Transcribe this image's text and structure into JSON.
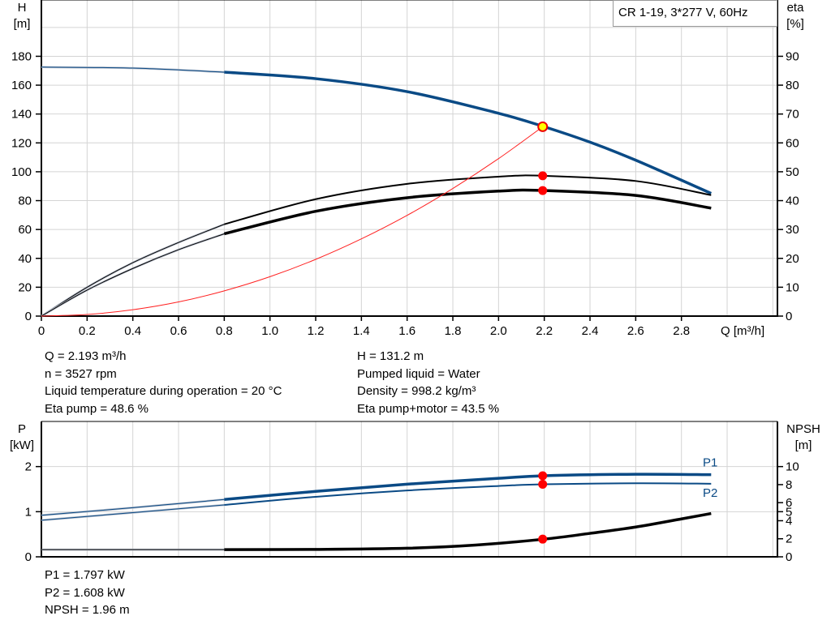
{
  "chart_data": [
    {
      "type": "line",
      "title": "CR 1-19, 3*277 V, 60Hz",
      "xlabel": "Q [m³/h]",
      "ylabel": "H\n[m]",
      "ylabel_left": [
        "H",
        "[m]"
      ],
      "ylabel_right": [
        "eta",
        "[%]"
      ],
      "xlim": [
        0,
        3.22
      ],
      "ylim": [
        0,
        219
      ],
      "y2lim": [
        0,
        109.5
      ],
      "x_ticks": [
        "0",
        "0.2",
        "0.4",
        "0.6",
        "0.8",
        "1.0",
        "1.2",
        "1.4",
        "1.6",
        "1.8",
        "2.0",
        "2.2",
        "2.4",
        "2.6",
        "2.8"
      ],
      "y_ticks": [
        "0",
        "20",
        "40",
        "60",
        "80",
        "100",
        "120",
        "140",
        "160",
        "180"
      ],
      "y2_ticks": [
        "0",
        "10",
        "20",
        "30",
        "40",
        "50",
        "60",
        "70",
        "80",
        "90"
      ],
      "grid": true,
      "series": [
        {
          "key": "H",
          "axis": "left",
          "color": "#0a4a85",
          "x": [
            0,
            0.4,
            0.8,
            1.2,
            1.6,
            2.0,
            2.2,
            2.4,
            2.6,
            2.93
          ],
          "y": [
            172.5,
            171.8,
            169,
            164.5,
            155.5,
            140.5,
            131.2,
            120.5,
            108,
            85
          ]
        },
        {
          "key": "eta_pump",
          "axis": "right",
          "color": "#000000",
          "x": [
            0,
            0.2,
            0.4,
            0.6,
            0.8,
            1.2,
            1.6,
            2.0,
            2.2,
            2.6,
            2.93
          ],
          "y": [
            0,
            10,
            18.5,
            25.5,
            31.8,
            40.5,
            45.8,
            48.3,
            48.6,
            46.8,
            41.9
          ]
        },
        {
          "key": "eta_pump_motor",
          "axis": "right",
          "color": "#000000",
          "x": [
            0,
            0.2,
            0.4,
            0.6,
            0.8,
            1.2,
            1.6,
            2.0,
            2.2,
            2.6,
            2.93
          ],
          "y": [
            0,
            9,
            16.5,
            23,
            28.5,
            36.3,
            41,
            43.3,
            43.5,
            41.8,
            37.4
          ]
        },
        {
          "key": "system_curve",
          "axis": "left",
          "color": "#ff2020",
          "x": [
            0,
            0.2,
            0.4,
            0.6,
            0.8,
            1.0,
            1.2,
            1.4,
            1.6,
            1.8,
            2.0,
            2.193
          ],
          "y": [
            0,
            1.1,
            4.4,
            9.8,
            17.5,
            27.3,
            39.3,
            53.5,
            69.8,
            88.4,
            109.1,
            131.2
          ]
        }
      ],
      "duty_points": [
        {
          "key": "H",
          "x": 2.193,
          "y": 131.2,
          "axis": "left",
          "color": "#ffff00"
        },
        {
          "key": "eta_pump",
          "x": 2.193,
          "y": 48.6,
          "axis": "right",
          "color": "#ff0000"
        },
        {
          "key": "eta_pump_motor",
          "x": 2.193,
          "y": 43.5,
          "axis": "right",
          "color": "#ff0000"
        }
      ]
    },
    {
      "type": "line",
      "ylabel_left": [
        "P",
        "[kW]"
      ],
      "ylabel_right": [
        "NPSH",
        "[m]"
      ],
      "xlim": [
        0,
        3.22
      ],
      "ylim": [
        0,
        3
      ],
      "y2lim": [
        0,
        15
      ],
      "y_ticks": [
        "0",
        "1",
        "2"
      ],
      "y2_ticks": [
        "0",
        "2",
        "4",
        "5",
        "6",
        "8",
        "10"
      ],
      "grid": true,
      "series": [
        {
          "key": "P1",
          "name": "P1",
          "axis": "left",
          "color": "#0a4a85",
          "x": [
            0,
            0.4,
            0.8,
            1.2,
            1.6,
            2.0,
            2.2,
            2.6,
            2.93
          ],
          "y": [
            0.92,
            1.09,
            1.27,
            1.45,
            1.61,
            1.74,
            1.797,
            1.83,
            1.82
          ]
        },
        {
          "key": "P2",
          "name": "P2",
          "axis": "left",
          "color": "#0a4a85",
          "x": [
            0,
            0.4,
            0.8,
            1.2,
            1.6,
            2.0,
            2.2,
            2.6,
            2.93
          ],
          "y": [
            0.81,
            0.98,
            1.15,
            1.33,
            1.47,
            1.57,
            1.608,
            1.63,
            1.62
          ]
        },
        {
          "key": "NPSH",
          "axis": "right",
          "color": "#000000",
          "x": [
            0,
            0.8,
            1.2,
            1.6,
            1.9,
            2.2,
            2.4,
            2.6,
            2.8,
            2.93
          ],
          "y": [
            0.8,
            0.8,
            0.82,
            0.95,
            1.3,
            1.96,
            2.6,
            3.3,
            4.2,
            4.8
          ]
        }
      ],
      "duty_points": [
        {
          "key": "P1",
          "x": 2.193,
          "y": 1.797,
          "axis": "left",
          "color": "#ff0000"
        },
        {
          "key": "P2",
          "x": 2.193,
          "y": 1.608,
          "axis": "left",
          "color": "#ff0000"
        },
        {
          "key": "NPSH",
          "x": 2.193,
          "y": 1.96,
          "axis": "right",
          "color": "#ff0000"
        }
      ]
    }
  ],
  "info": {
    "left": [
      "Q = 2.193 m³/h",
      "n = 3527 rpm",
      "Liquid temperature during operation = 20 °C",
      "Eta pump = 48.6 %"
    ],
    "right": [
      "H = 131.2 m",
      "Pumped liquid = Water",
      "Density = 998.2 kg/m³",
      "Eta pump+motor = 43.5 %"
    ],
    "bottom": [
      "P1 = 1.797 kW",
      "P2 = 1.608 kW",
      "NPSH = 1.96 m"
    ]
  }
}
